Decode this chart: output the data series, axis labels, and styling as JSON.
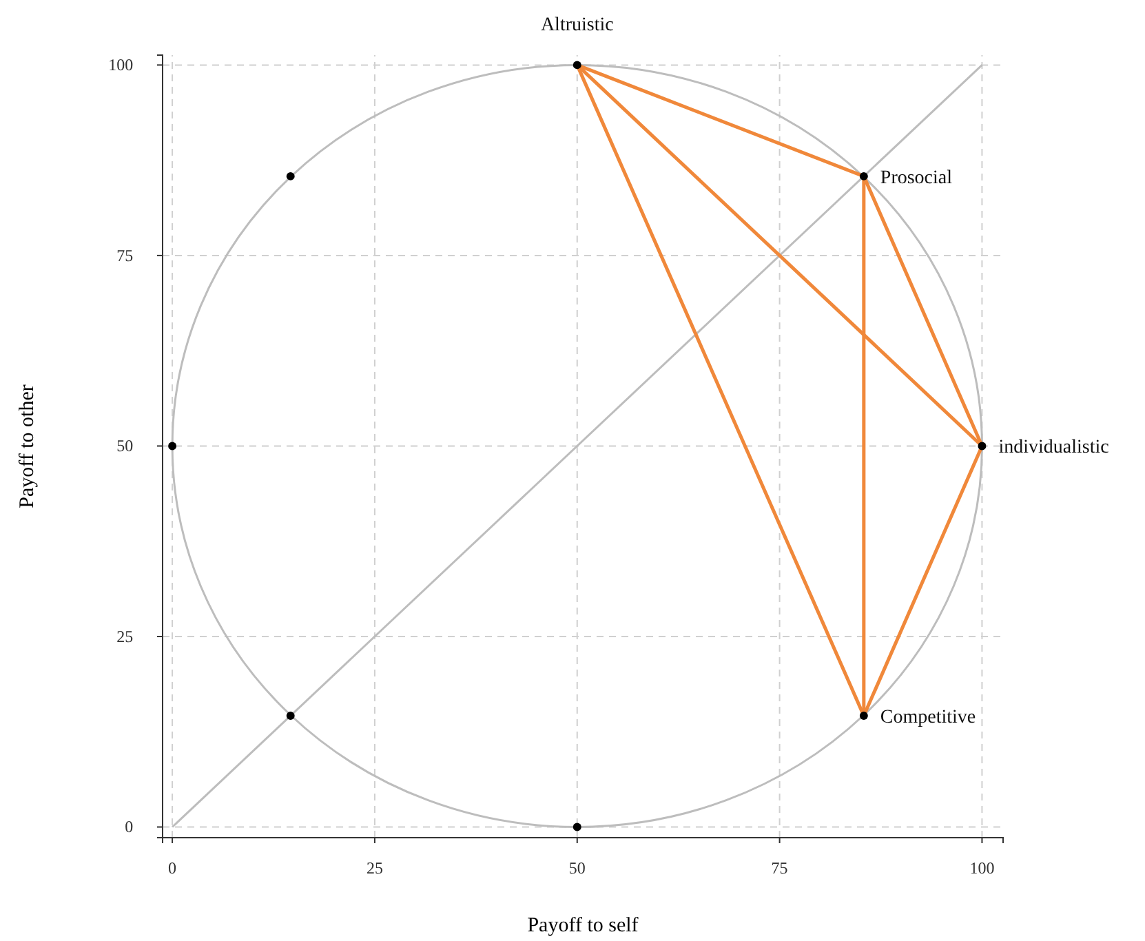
{
  "chart_data": {
    "type": "scatter",
    "xlabel": "Payoff to self",
    "ylabel": "Payoff to other",
    "xlim": [
      -1.2,
      102.6
    ],
    "ylim": [
      -1.4,
      101.3
    ],
    "xticks": [
      0,
      25,
      50,
      75,
      100
    ],
    "yticks": [
      0,
      25,
      50,
      75,
      100
    ],
    "grid": true,
    "marker": "circle",
    "series": [
      {
        "type": "line",
        "marker": "none",
        "color": "#bdbdbd",
        "x": [
          0,
          100
        ],
        "values": [
          0,
          100
        ]
      },
      {
        "type": "line",
        "marker": "none",
        "color": "#f0883a",
        "x": [
          50,
          85.4
        ],
        "values": [
          100,
          85.4
        ]
      },
      {
        "type": "line",
        "marker": "none",
        "color": "#f0883a",
        "x": [
          50,
          100
        ],
        "values": [
          100,
          50
        ]
      },
      {
        "type": "line",
        "marker": "none",
        "color": "#f0883a",
        "x": [
          50,
          85.4
        ],
        "values": [
          100,
          14.6
        ]
      },
      {
        "type": "line",
        "marker": "none",
        "color": "#f0883a",
        "x": [
          85.4,
          100
        ],
        "values": [
          85.4,
          50
        ]
      },
      {
        "type": "line",
        "marker": "none",
        "color": "#f0883a",
        "x": [
          85.4,
          85.4
        ],
        "values": [
          85.4,
          14.6
        ]
      },
      {
        "type": "line",
        "marker": "none",
        "color": "#f0883a",
        "x": [
          100,
          85.4
        ],
        "values": [
          50,
          14.6
        ]
      },
      {
        "color": "#000000",
        "x": [
          50,
          85.4,
          100,
          85.4,
          50,
          14.6,
          0,
          14.6
        ],
        "values": [
          100,
          85.4,
          50,
          14.6,
          0,
          14.6,
          50,
          85.4
        ]
      }
    ],
    "annotations": [
      {
        "text": "Altruistic",
        "x": 50,
        "y": 100
      },
      {
        "text": "Prosocial",
        "x": 85.4,
        "y": 85.4
      },
      {
        "text": "individualistic",
        "x": 100,
        "y": 50
      },
      {
        "text": "Competitive",
        "x": 85.4,
        "y": 14.6
      }
    ]
  }
}
